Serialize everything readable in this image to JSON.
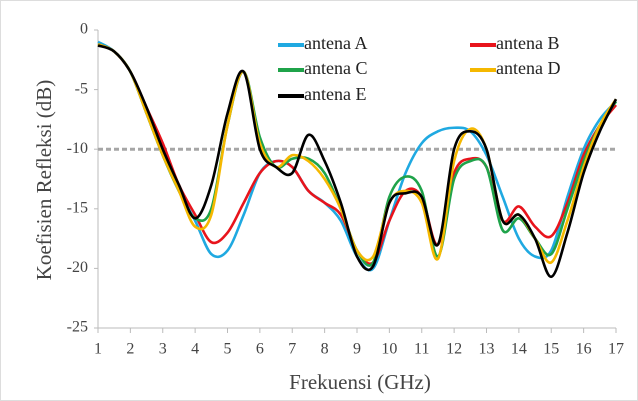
{
  "chart_data": {
    "type": "line",
    "xlabel": "Frekuensi (GHz)",
    "ylabel": "Koefisien Refleksi (dB)",
    "x": [
      1,
      1.5,
      2,
      2.5,
      3,
      3.5,
      4,
      4.5,
      5,
      5.5,
      6,
      6.5,
      7,
      7.5,
      8,
      8.5,
      9,
      9.5,
      10,
      10.5,
      11,
      11.5,
      12,
      12.5,
      13,
      13.5,
      14,
      14.5,
      15,
      15.5,
      16,
      16.5,
      17
    ],
    "series": [
      {
        "name": "antena A",
        "color": "#1fa9e1",
        "values": [
          -1,
          -1.8,
          -3.5,
          -7,
          -10.5,
          -13.5,
          -16,
          -18.8,
          -18.5,
          -15.5,
          -12,
          -11,
          -11.5,
          -13.5,
          -14.5,
          -16,
          -19,
          -20,
          -16,
          -12,
          -9.5,
          -8.5,
          -8.2,
          -8.5,
          -10.5,
          -14,
          -17.5,
          -19,
          -18.5,
          -14,
          -10,
          -7.5,
          -6
        ]
      },
      {
        "name": "antena B",
        "color": "#e8141c",
        "values": [
          -1.2,
          -1.8,
          -3.5,
          -6.5,
          -9.5,
          -13,
          -15.5,
          -17.8,
          -17,
          -14.5,
          -12,
          -11,
          -11.5,
          -13.5,
          -14.5,
          -15.5,
          -18.5,
          -19.5,
          -16,
          -13.5,
          -14,
          -18,
          -12,
          -10.8,
          -11.5,
          -16,
          -14.8,
          -16.5,
          -17.3,
          -14.5,
          -10.5,
          -8,
          -6.3
        ]
      },
      {
        "name": "antena C",
        "color": "#1fa34a",
        "values": [
          -1.2,
          -1.8,
          -3.5,
          -7,
          -10.5,
          -13.5,
          -15.8,
          -15,
          -8,
          -3.5,
          -9,
          -11.5,
          -10.8,
          -10.8,
          -12,
          -15,
          -18.5,
          -19.5,
          -14,
          -12.3,
          -13.5,
          -19,
          -12.5,
          -11,
          -11.5,
          -16.8,
          -15.8,
          -17.5,
          -18.8,
          -15,
          -11,
          -8,
          -6
        ]
      },
      {
        "name": "antena D",
        "color": "#f5b800",
        "values": [
          -1.2,
          -1.8,
          -3.5,
          -7,
          -10.5,
          -13.5,
          -16.5,
          -15.5,
          -8,
          -3.5,
          -9.5,
          -11.5,
          -10.5,
          -11,
          -12.5,
          -15,
          -18.5,
          -19,
          -14.5,
          -13.5,
          -14.5,
          -19.2,
          -11,
          -8.3,
          -10,
          -16,
          -15.5,
          -17.5,
          -19.5,
          -16,
          -11.5,
          -8,
          -5.8
        ]
      },
      {
        "name": "antena E",
        "color": "#000000",
        "values": [
          -1.3,
          -1.8,
          -3.5,
          -6.5,
          -10,
          -13,
          -15.8,
          -13,
          -7,
          -3.5,
          -10,
          -11.5,
          -12,
          -8.8,
          -11,
          -14.5,
          -19,
          -19.8,
          -14.5,
          -13.7,
          -14,
          -18,
          -10,
          -8.5,
          -10,
          -16,
          -15.5,
          -17.5,
          -20.7,
          -17,
          -12,
          -8.5,
          -5.8
        ]
      }
    ],
    "threshold": -10,
    "xlim": [
      1,
      17
    ],
    "ylim": [
      -25,
      0
    ],
    "xticks": [
      1,
      2,
      3,
      4,
      5,
      6,
      7,
      8,
      9,
      10,
      11,
      12,
      13,
      14,
      15,
      16,
      17
    ],
    "yticks": [
      -25,
      -20,
      -15,
      -10,
      -5,
      0
    ]
  }
}
